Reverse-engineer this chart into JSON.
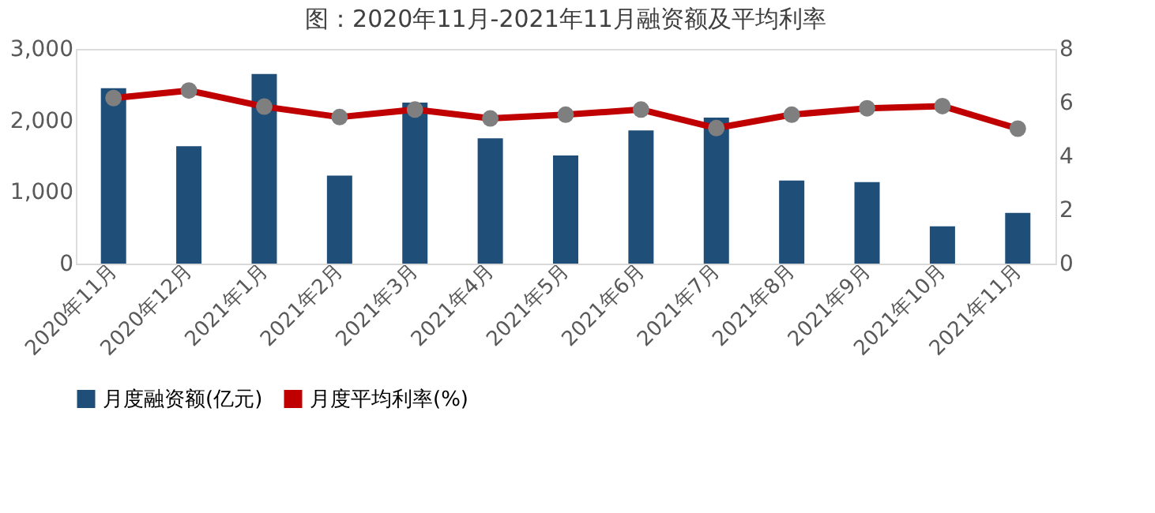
{
  "chart_data": {
    "type": "bar",
    "title": "图：2020年11月-2021年11月融资额及平均利率",
    "categories": [
      "2020年11月",
      "2020年12月",
      "2021年1月",
      "2021年2月",
      "2021年3月",
      "2021年4月",
      "2021年5月",
      "2021年6月",
      "2021年7月",
      "2021年8月",
      "2021年9月",
      "2021年10月",
      "2021年11月"
    ],
    "series": [
      {
        "name": "月度融资额(亿元)",
        "color": "#1f4e79",
        "values": [
          2450,
          1640,
          2650,
          1230,
          2250,
          1750,
          1510,
          1860,
          2040,
          1160,
          1140,
          520,
          710
        ]
      },
      {
        "name": "月度平均利率(%)",
        "type": "line",
        "axis": "y2",
        "color": "#c00000",
        "marker": "circle",
        "values": [
          6.17,
          6.45,
          5.85,
          5.46,
          5.74,
          5.41,
          5.55,
          5.74,
          5.05,
          5.55,
          5.79,
          5.87,
          5.03
        ]
      }
    ],
    "ylim": [
      0,
      3000
    ],
    "yticks": [
      0,
      {
        "value": 1000,
        "label": "1,000"
      },
      {
        "value": 2000,
        "label": "2,000"
      },
      {
        "value": 3000,
        "label": "3,000"
      }
    ],
    "y2lim": [
      0,
      8
    ],
    "y2ticks": [
      0,
      2,
      4,
      6,
      8
    ],
    "grid": false,
    "legend": "bottom"
  }
}
